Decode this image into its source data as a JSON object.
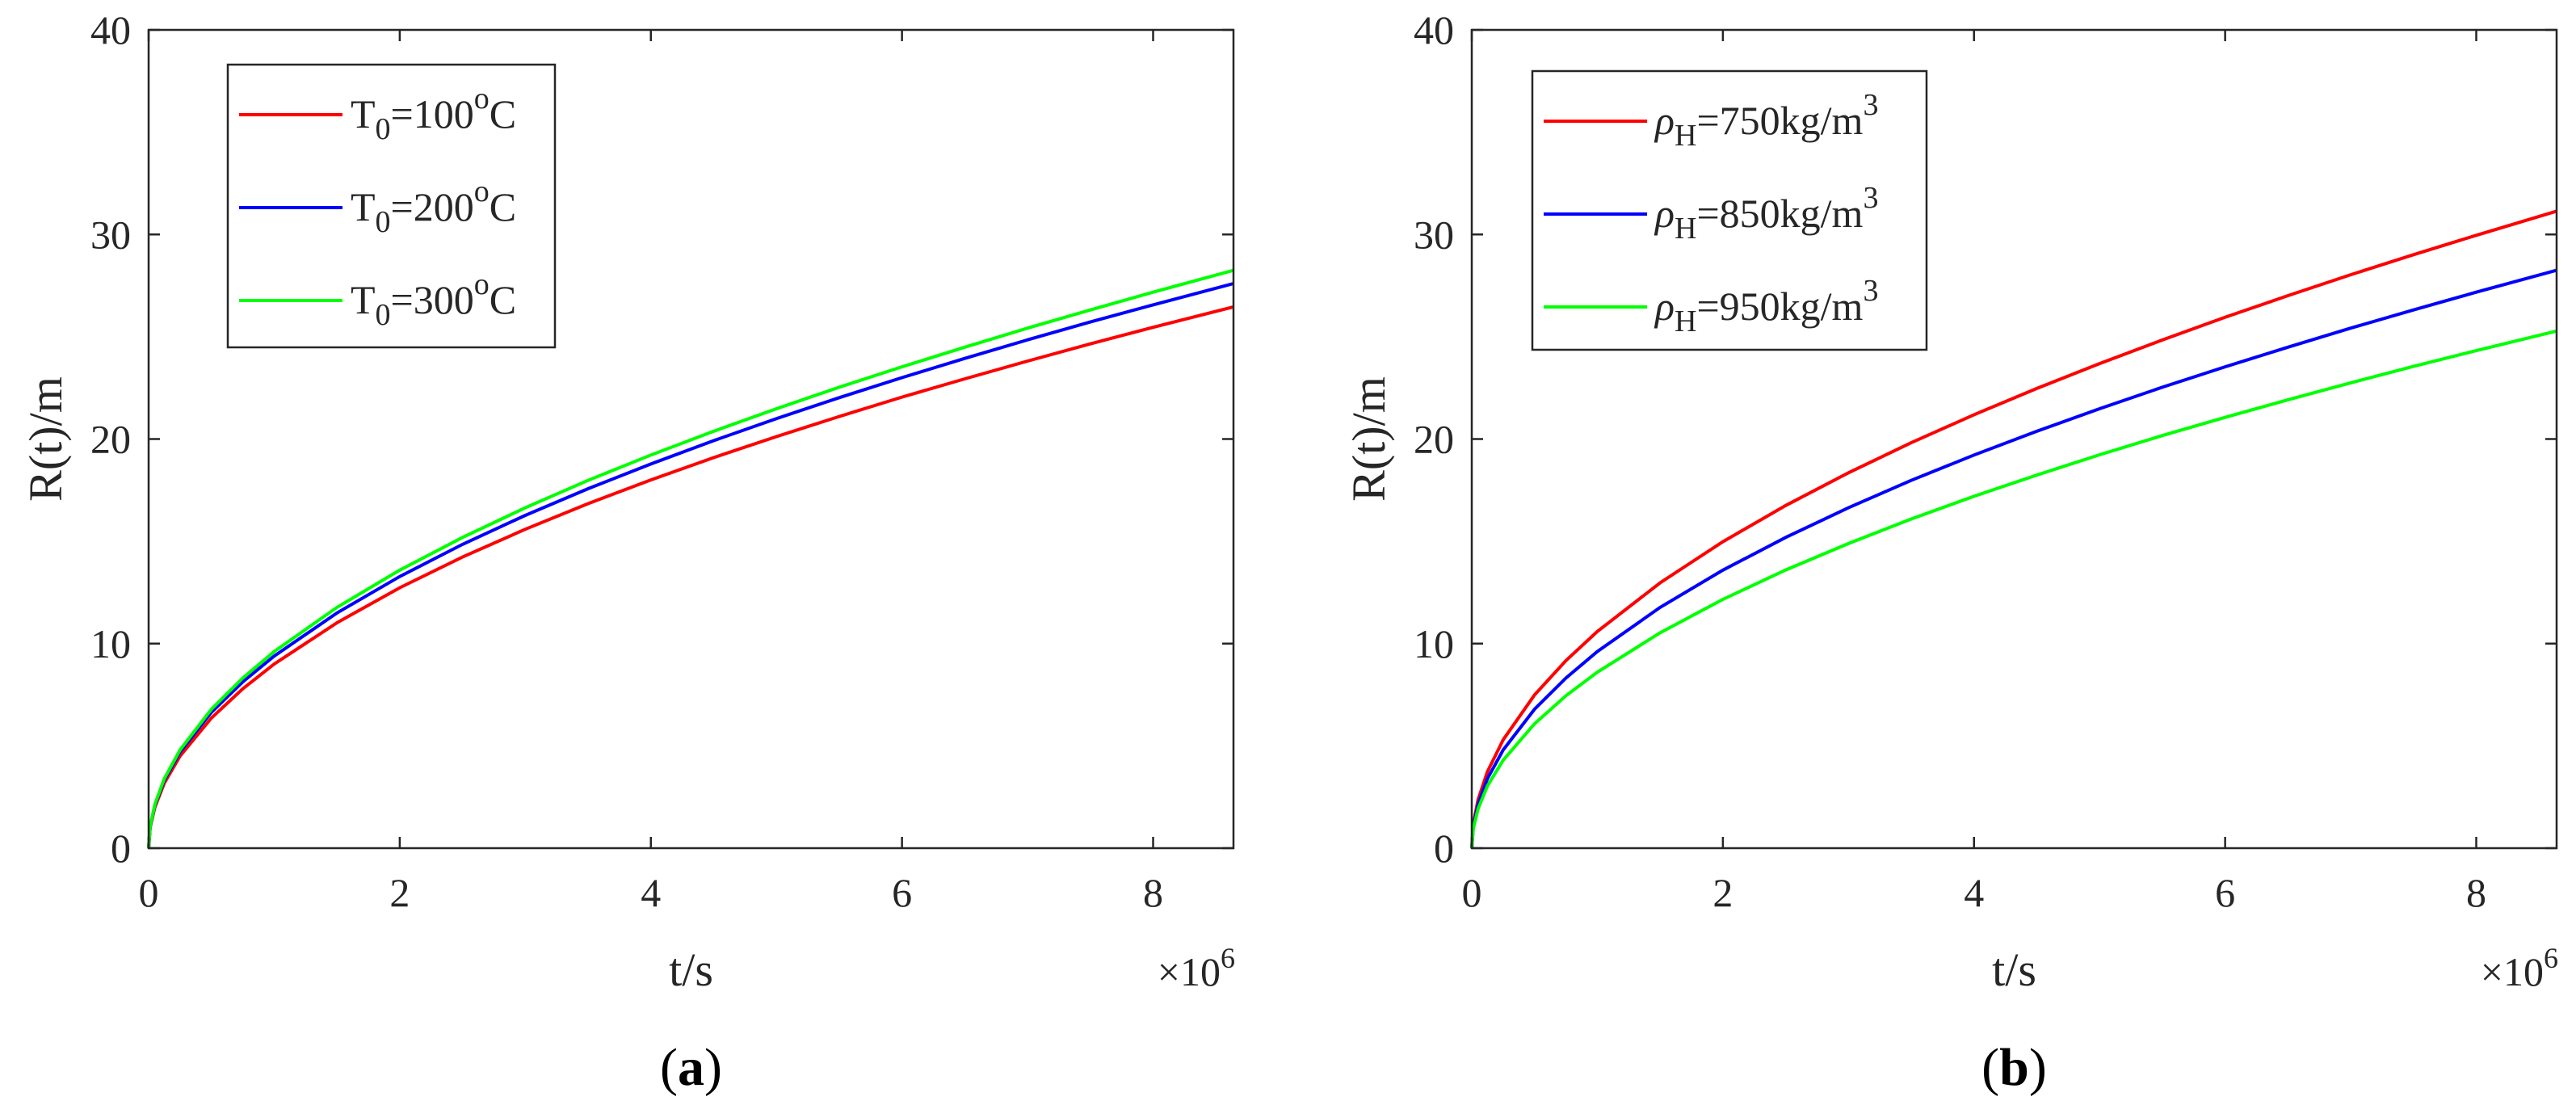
{
  "chart_data": [
    {
      "type": "line",
      "panel_label": "(a)",
      "panel_letter": "a",
      "xlabel": "t/s",
      "ylabel": "R(t)/m",
      "x_multiplier": {
        "base": "×10",
        "exponent": "6"
      },
      "xlim": [
        0,
        8.64
      ],
      "ylim": [
        0,
        40
      ],
      "xticks": [
        0,
        2,
        4,
        6,
        8
      ],
      "xtick_labels": [
        "0",
        "2",
        "4",
        "6",
        "8"
      ],
      "yticks": [
        0,
        10,
        20,
        30,
        40
      ],
      "ytick_labels": [
        "0",
        "10",
        "20",
        "30",
        "40"
      ],
      "x_unit_scale": "1e6",
      "legend_position": "top-left",
      "series": [
        {
          "name": "T0=100oC",
          "legend": {
            "main": "T",
            "sub": "0",
            "mid": "=100",
            "sup": "o",
            "tail": "C"
          },
          "color": "#ff0000",
          "x": [
            0,
            0.0125,
            0.05,
            0.125,
            0.25,
            0.5,
            0.75,
            1,
            1.5,
            2,
            2.5,
            3,
            3.5,
            4,
            4.5,
            5,
            5.5,
            6,
            6.5,
            7,
            7.5,
            8,
            8.64
          ],
          "y": [
            0,
            1.01,
            2.01,
            3.18,
            4.5,
            6.36,
            7.79,
            9.0,
            11.02,
            12.73,
            14.23,
            15.59,
            16.84,
            18.0,
            19.09,
            20.12,
            21.1,
            22.05,
            22.94,
            23.81,
            24.65,
            25.46,
            26.46
          ]
        },
        {
          "name": "T0=200oC",
          "legend": {
            "main": "T",
            "sub": "0",
            "mid": "=200",
            "sup": "o",
            "tail": "C"
          },
          "color": "#0000ff",
          "x": [
            0,
            0.0125,
            0.05,
            0.125,
            0.25,
            0.5,
            0.75,
            1,
            1.5,
            2,
            2.5,
            3,
            3.5,
            4,
            4.5,
            5,
            5.5,
            6,
            6.5,
            7,
            7.5,
            8,
            8.64
          ],
          "y": [
            0,
            1.05,
            2.1,
            3.32,
            4.7,
            6.64,
            8.13,
            9.39,
            11.5,
            13.28,
            14.85,
            16.27,
            17.57,
            18.78,
            19.92,
            21.0,
            22.02,
            23.0,
            23.94,
            24.85,
            25.72,
            26.56,
            27.6
          ]
        },
        {
          "name": "T0=300oC",
          "legend": {
            "main": "T",
            "sub": "0",
            "mid": "=300",
            "sup": "o",
            "tail": "C"
          },
          "color": "#00ff00",
          "x": [
            0,
            0.0125,
            0.05,
            0.125,
            0.25,
            0.5,
            0.75,
            1,
            1.5,
            2,
            2.5,
            3,
            3.5,
            4,
            4.5,
            5,
            5.5,
            6,
            6.5,
            7,
            7.5,
            8,
            8.64
          ],
          "y": [
            0,
            1.07,
            2.15,
            3.4,
            4.8,
            6.79,
            8.32,
            9.61,
            11.77,
            13.59,
            15.19,
            16.64,
            17.98,
            19.22,
            20.38,
            21.48,
            22.53,
            23.53,
            24.49,
            25.42,
            26.31,
            27.18,
            28.25
          ]
        }
      ]
    },
    {
      "type": "line",
      "panel_label": "(b)",
      "panel_letter": "b",
      "xlabel": "t/s",
      "ylabel": "R(t)/m",
      "x_multiplier": {
        "base": "×10",
        "exponent": "6"
      },
      "xlim": [
        0,
        8.64
      ],
      "ylim": [
        0,
        40
      ],
      "xticks": [
        0,
        2,
        4,
        6,
        8
      ],
      "xtick_labels": [
        "0",
        "2",
        "4",
        "6",
        "8"
      ],
      "yticks": [
        0,
        10,
        20,
        30,
        40
      ],
      "ytick_labels": [
        "0",
        "10",
        "20",
        "30",
        "40"
      ],
      "x_unit_scale": "1e6",
      "legend_position": "top-left",
      "series": [
        {
          "name": "ρH=750kg/m3",
          "legend": {
            "main": "ρ",
            "sub": "H",
            "mid": "=750kg/m",
            "sup": "3",
            "tail": ""
          },
          "color": "#ff0000",
          "x": [
            0,
            0.0125,
            0.05,
            0.125,
            0.25,
            0.5,
            0.75,
            1,
            1.5,
            2,
            2.5,
            3,
            3.5,
            4,
            4.5,
            5,
            5.5,
            6,
            6.5,
            7,
            7.5,
            8,
            8.64
          ],
          "y": [
            0,
            1.18,
            2.37,
            3.74,
            5.3,
            7.49,
            9.17,
            10.59,
            12.97,
            14.98,
            16.75,
            18.35,
            19.82,
            21.19,
            22.47,
            23.69,
            24.84,
            25.95,
            27.01,
            28.03,
            29.01,
            29.96,
            31.14
          ]
        },
        {
          "name": "ρH=850kg/m3",
          "legend": {
            "main": "ρ",
            "sub": "H",
            "mid": "=850kg/m",
            "sup": "3",
            "tail": ""
          },
          "color": "#0000ff",
          "x": [
            0,
            0.0125,
            0.05,
            0.125,
            0.25,
            0.5,
            0.75,
            1,
            1.5,
            2,
            2.5,
            3,
            3.5,
            4,
            4.5,
            5,
            5.5,
            6,
            6.5,
            7,
            7.5,
            8,
            8.64
          ],
          "y": [
            0,
            1.07,
            2.15,
            3.4,
            4.8,
            6.79,
            8.32,
            9.61,
            11.77,
            13.59,
            15.19,
            16.64,
            17.98,
            19.22,
            20.38,
            21.48,
            22.53,
            23.53,
            24.49,
            25.42,
            26.31,
            27.18,
            28.25
          ]
        },
        {
          "name": "ρH=950kg/m3",
          "legend": {
            "main": "ρ",
            "sub": "H",
            "mid": "=950kg/m",
            "sup": "3",
            "tail": ""
          },
          "color": "#00ff00",
          "x": [
            0,
            0.0125,
            0.05,
            0.125,
            0.25,
            0.5,
            0.75,
            1,
            1.5,
            2,
            2.5,
            3,
            3.5,
            4,
            4.5,
            5,
            5.5,
            6,
            6.5,
            7,
            7.5,
            8,
            8.64
          ],
          "y": [
            0,
            0.96,
            1.92,
            3.04,
            4.3,
            6.08,
            7.45,
            8.6,
            10.53,
            12.16,
            13.6,
            14.89,
            16.09,
            17.2,
            18.24,
            19.23,
            20.17,
            21.06,
            21.92,
            22.75,
            23.55,
            24.32,
            25.28
          ]
        }
      ]
    }
  ]
}
